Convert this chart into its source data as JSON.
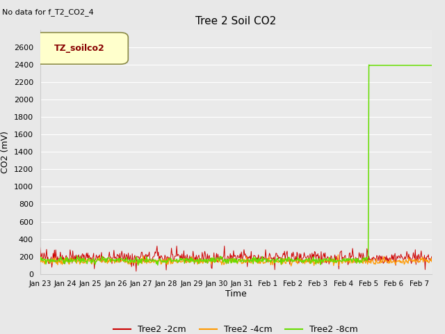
{
  "title": "Tree 2 Soil CO2",
  "no_data_text": "No data for f_T2_CO2_4",
  "ylabel": "CO2 (mV)",
  "xlabel": "Time",
  "ylim": [
    0,
    2800
  ],
  "yticks": [
    0,
    200,
    400,
    600,
    800,
    1000,
    1200,
    1400,
    1600,
    1800,
    2000,
    2200,
    2400,
    2600
  ],
  "legend_label": "TZ_soilco2",
  "bg_color": "#e8e8e8",
  "plot_bg": "#eaeaea",
  "series": {
    "red": {
      "label": "Tree2 -2cm",
      "color": "#cc0000"
    },
    "orange": {
      "label": "Tree2 -4cm",
      "color": "#ff9900"
    },
    "green": {
      "label": "Tree2 -8cm",
      "color": "#66dd00"
    }
  },
  "x_tick_labels": [
    "Jan 23",
    "Jan 24",
    "Jan 25",
    "Jan 26",
    "Jan 27",
    "Jan 28",
    "Jan 29",
    "Jan 30",
    "Jan 31",
    "Feb 1",
    "Feb 2",
    "Feb 3",
    "Feb 4",
    "Feb 5",
    "Feb 6",
    "Feb 7"
  ],
  "spike_day_index": 13,
  "spike_value": 2400,
  "num_days": 15.5,
  "seed_red": 42,
  "seed_orange": 7,
  "seed_green": 99
}
